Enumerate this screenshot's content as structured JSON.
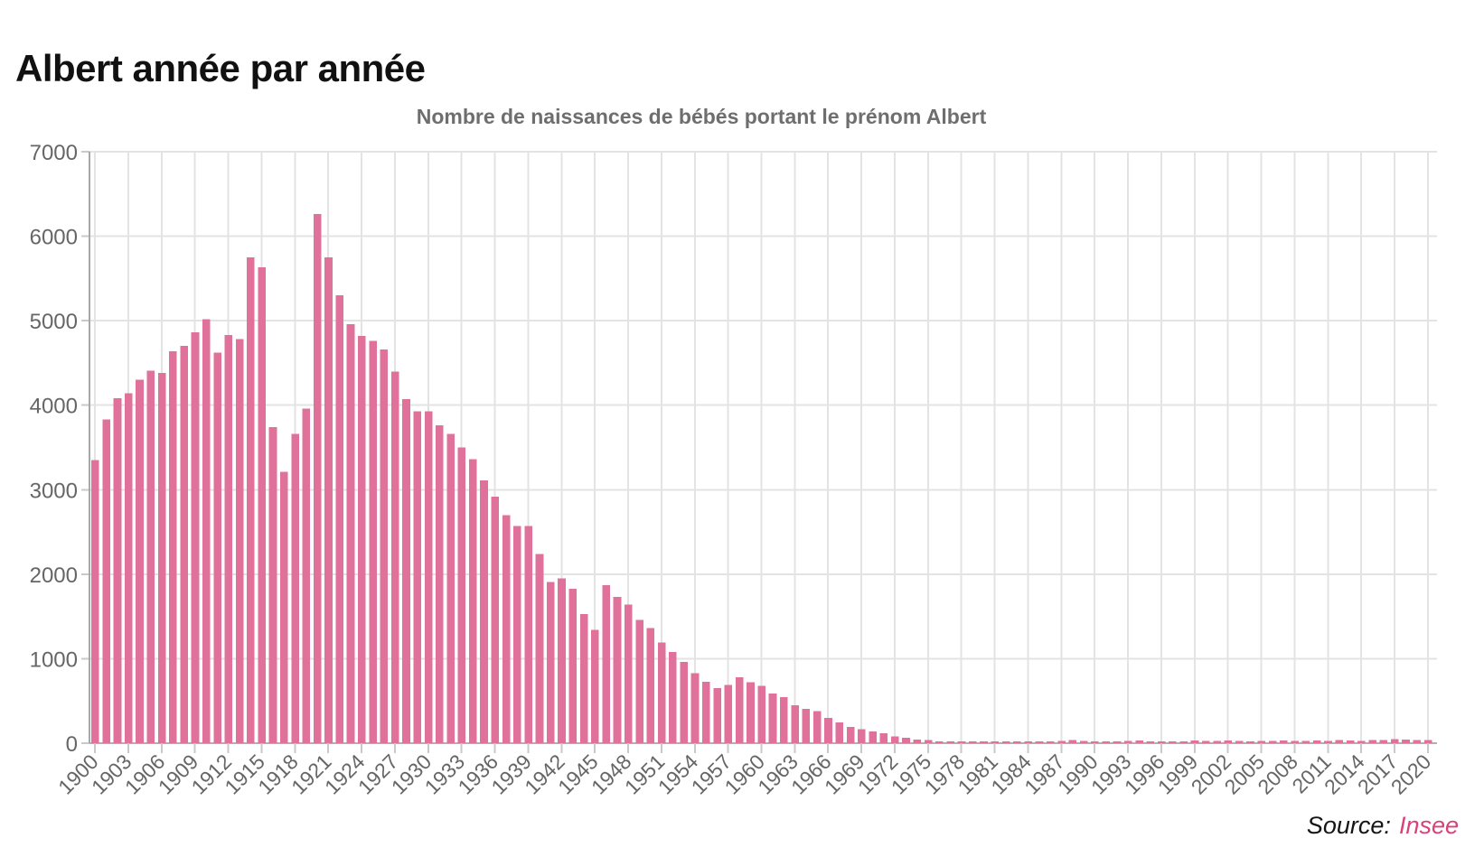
{
  "header": {
    "title": "Albert année par année"
  },
  "source": {
    "prefix": "Source:",
    "name": "Insee",
    "name_color": "#d8417a"
  },
  "colors": {
    "bar": "#e0719b",
    "grid": "#e3e3e3",
    "tick_stub": "#c9c9c9",
    "axis_line": "#a8a8a8",
    "baseline": "#b0b0b0",
    "axis_text": "#666666",
    "title_text": "#111111",
    "subtitle_text": "#6e6e6e"
  },
  "chart_data": {
    "type": "bar",
    "title": "Nombre de naissances de bébés portant le prénom Albert",
    "xlabel": "",
    "ylabel": "",
    "ylim": [
      0,
      7000
    ],
    "ytick_step": 1000,
    "xtick_step": 3,
    "grid": true,
    "legend": false,
    "x": [
      1900,
      1901,
      1902,
      1903,
      1904,
      1905,
      1906,
      1907,
      1908,
      1909,
      1910,
      1911,
      1912,
      1913,
      1914,
      1915,
      1916,
      1917,
      1918,
      1919,
      1920,
      1921,
      1922,
      1923,
      1924,
      1925,
      1926,
      1927,
      1928,
      1929,
      1930,
      1931,
      1932,
      1933,
      1934,
      1935,
      1936,
      1937,
      1938,
      1939,
      1940,
      1941,
      1942,
      1943,
      1944,
      1945,
      1946,
      1947,
      1948,
      1949,
      1950,
      1951,
      1952,
      1953,
      1954,
      1955,
      1956,
      1957,
      1958,
      1959,
      1960,
      1961,
      1962,
      1963,
      1964,
      1965,
      1966,
      1967,
      1968,
      1969,
      1970,
      1971,
      1972,
      1973,
      1974,
      1975,
      1976,
      1977,
      1978,
      1979,
      1980,
      1981,
      1982,
      1983,
      1984,
      1985,
      1986,
      1987,
      1988,
      1989,
      1990,
      1991,
      1992,
      1993,
      1994,
      1995,
      1996,
      1997,
      1998,
      1999,
      2000,
      2001,
      2002,
      2003,
      2004,
      2005,
      2006,
      2007,
      2008,
      2009,
      2010,
      2011,
      2012,
      2013,
      2014,
      2015,
      2016,
      2017,
      2018,
      2019,
      2020
    ],
    "values": [
      3350,
      3830,
      4080,
      4140,
      4300,
      4410,
      4380,
      4640,
      4700,
      4860,
      5020,
      4620,
      4830,
      4780,
      5750,
      5630,
      3740,
      3210,
      3660,
      3960,
      6260,
      5750,
      5300,
      4960,
      4820,
      4760,
      4660,
      4400,
      4070,
      3930,
      3930,
      3760,
      3660,
      3500,
      3360,
      3110,
      2920,
      2700,
      2570,
      2570,
      2240,
      1910,
      1950,
      1830,
      1530,
      1340,
      1870,
      1730,
      1640,
      1460,
      1360,
      1190,
      1080,
      960,
      830,
      725,
      650,
      690,
      780,
      720,
      680,
      590,
      545,
      450,
      405,
      380,
      300,
      245,
      190,
      165,
      140,
      120,
      78,
      64,
      45,
      36,
      22,
      14,
      20,
      18,
      15,
      10,
      15,
      20,
      22,
      20,
      18,
      25,
      40,
      25,
      15,
      20,
      22,
      27,
      30,
      20,
      23,
      18,
      22,
      30,
      25,
      28,
      30,
      25,
      22,
      25,
      28,
      30,
      25,
      28,
      30,
      28,
      35,
      30,
      28,
      35,
      40,
      50,
      45,
      40,
      40
    ]
  }
}
